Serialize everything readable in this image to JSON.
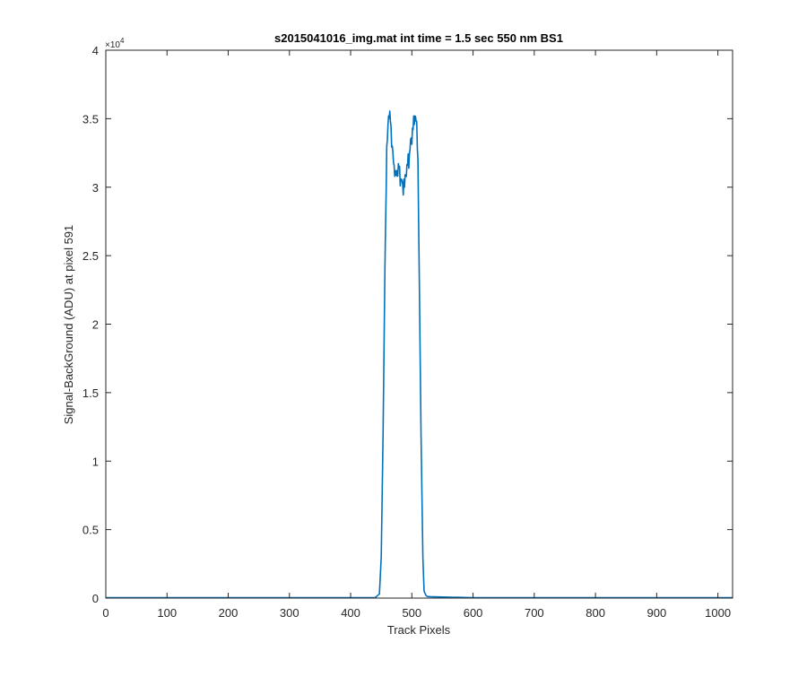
{
  "chart_data": {
    "type": "line",
    "title": "s2015041016_img.mat int time = 1.5 sec  550 nm BS1",
    "xlabel": "Track Pixels",
    "ylabel": "Signal-BackGround (ADU) at pixel 591",
    "xlim": [
      0,
      1024
    ],
    "ylim": [
      0,
      40000
    ],
    "y_exponent_label": "×10",
    "y_exponent_power": "4",
    "x_ticks": [
      0,
      100,
      200,
      300,
      400,
      500,
      600,
      700,
      800,
      900,
      1000
    ],
    "x_tick_labels": [
      "0",
      "100",
      "200",
      "300",
      "400",
      "500",
      "600",
      "700",
      "800",
      "900",
      "1000"
    ],
    "y_ticks": [
      0,
      5000,
      10000,
      15000,
      20000,
      25000,
      30000,
      35000,
      40000
    ],
    "y_tick_labels": [
      "0",
      "0.5",
      "1",
      "1.5",
      "2",
      "2.5",
      "3",
      "3.5",
      "4"
    ],
    "grid": false,
    "series": [
      {
        "color": "#0072bd",
        "x": [
          0,
          100,
          200,
          300,
          400,
          440,
          447,
          450,
          453,
          456,
          459,
          462,
          465,
          468,
          470,
          473,
          476,
          479,
          482,
          485,
          488,
          490,
          493,
          496,
          499,
          502,
          505,
          508,
          510,
          512,
          515,
          518,
          520,
          523,
          525,
          530,
          550,
          600,
          700,
          800,
          900,
          1024
        ],
        "y": [
          30,
          30,
          30,
          30,
          30,
          30,
          300,
          3000,
          12000,
          24000,
          33000,
          35200,
          34800,
          33000,
          31800,
          31200,
          30800,
          31400,
          30600,
          30200,
          30000,
          30800,
          31600,
          32400,
          33600,
          34200,
          35200,
          34800,
          32000,
          24000,
          12000,
          3000,
          500,
          200,
          120,
          100,
          80,
          30,
          30,
          30,
          30,
          30
        ]
      }
    ]
  }
}
